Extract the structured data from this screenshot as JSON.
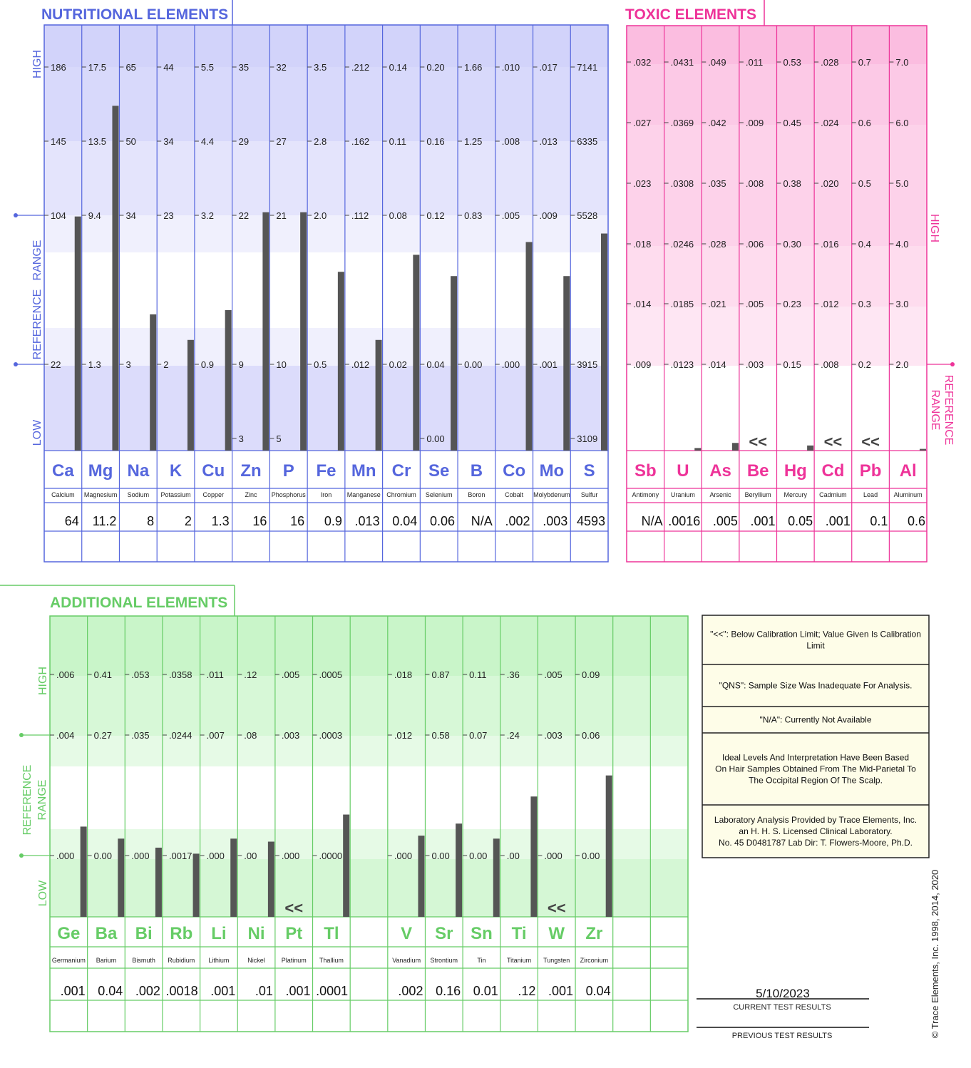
{
  "colors": {
    "nutritional": "#5566dd",
    "toxic": "#ee3399",
    "additional": "#66cc66",
    "bar": "#555555"
  },
  "panels": {
    "nutritional": {
      "title": "NUTRITIONAL  ELEMENTS",
      "high": "HIGH",
      "low": "LOW",
      "ref1": "REFERENCE",
      "ref2": "RANGE"
    },
    "toxic": {
      "title": "TOXIC  ELEMENTS",
      "high": "HIGH",
      "ref1": "REFERENCE",
      "ref2": "RANGE"
    },
    "additional": {
      "title": "ADDITIONAL  ELEMENTS",
      "high": "HIGH",
      "low": "LOW",
      "ref1": "REFERENCE",
      "ref2": "RANGE"
    }
  },
  "chart_data": [
    {
      "type": "bar",
      "title": "NUTRITIONAL  ELEMENTS",
      "elements": [
        {
          "symbol": "Ca",
          "name": "Calcium",
          "ticks": [
            "186",
            "145",
            "104",
            "22"
          ],
          "extra": [],
          "value": "64",
          "level": 0.55
        },
        {
          "symbol": "Mg",
          "name": "Magnesium",
          "ticks": [
            "17.5",
            "13.5",
            "9.4",
            "1.3"
          ],
          "extra": [],
          "value": "11.2",
          "level": 0.81
        },
        {
          "symbol": "Na",
          "name": "Sodium",
          "ticks": [
            "65",
            "50",
            "34",
            "3"
          ],
          "extra": [],
          "value": "8",
          "level": 0.32
        },
        {
          "symbol": "K",
          "name": "Potassium",
          "ticks": [
            "44",
            "34",
            "23",
            "2"
          ],
          "extra": [],
          "value": "2",
          "level": 0.26
        },
        {
          "symbol": "Cu",
          "name": "Copper",
          "ticks": [
            "5.5",
            "4.4",
            "3.2",
            "0.9"
          ],
          "extra": [],
          "value": "1.3",
          "level": 0.33
        },
        {
          "symbol": "Zn",
          "name": "Zinc",
          "ticks": [
            "35",
            "29",
            "22",
            "9"
          ],
          "extra": [
            "3"
          ],
          "value": "16",
          "level": 0.56
        },
        {
          "symbol": "P",
          "name": "Phosphorus",
          "ticks": [
            "32",
            "27",
            "21",
            "10"
          ],
          "extra": [
            "5"
          ],
          "value": "16",
          "level": 0.56
        },
        {
          "symbol": "Fe",
          "name": "Iron",
          "ticks": [
            "3.5",
            "2.8",
            "2.0",
            "0.5"
          ],
          "extra": [],
          "value": "0.9",
          "level": 0.42
        },
        {
          "symbol": "Mn",
          "name": "Manganese",
          "ticks": [
            ".212",
            ".162",
            ".112",
            ".012"
          ],
          "extra": [],
          "value": ".013",
          "level": 0.26
        },
        {
          "symbol": "Cr",
          "name": "Chromium",
          "ticks": [
            "0.14",
            "0.11",
            "0.08",
            "0.02"
          ],
          "extra": [],
          "value": "0.04",
          "level": 0.46
        },
        {
          "symbol": "Se",
          "name": "Selenium",
          "ticks": [
            "0.20",
            "0.16",
            "0.12",
            "0.04"
          ],
          "extra": [
            "0.00"
          ],
          "value": "0.06",
          "level": 0.41
        },
        {
          "symbol": "B",
          "name": "Boron",
          "ticks": [
            "1.66",
            "1.25",
            "0.83",
            "0.00"
          ],
          "extra": [],
          "value": "N/A",
          "level": 0
        },
        {
          "symbol": "Co",
          "name": "Cobalt",
          "ticks": [
            ".010",
            ".008",
            ".005",
            ".000"
          ],
          "extra": [],
          "value": ".002",
          "level": 0.49
        },
        {
          "symbol": "Mo",
          "name": "Molybdenum",
          "ticks": [
            ".017",
            ".013",
            ".009",
            ".001"
          ],
          "extra": [],
          "value": ".003",
          "level": 0.41
        },
        {
          "symbol": "S",
          "name": "Sulfur",
          "ticks": [
            "7141",
            "6335",
            "5528",
            "3915"
          ],
          "extra": [
            "3109"
          ],
          "value": "4593",
          "level": 0.51
        }
      ]
    },
    {
      "type": "bar",
      "title": "TOXIC  ELEMENTS",
      "elements": [
        {
          "symbol": "Sb",
          "name": "Antimony",
          "ticks": [
            ".032",
            ".027",
            ".023",
            ".018",
            ".014",
            ".009"
          ],
          "value": "N/A",
          "level": 0,
          "marker": ""
        },
        {
          "symbol": "U",
          "name": "Uranium",
          "ticks": [
            ".0431",
            ".0369",
            ".0308",
            ".0246",
            ".0185",
            ".0123"
          ],
          "value": ".0016",
          "level": 0.006,
          "marker": ""
        },
        {
          "symbol": "As",
          "name": "Arsenic",
          "ticks": [
            ".049",
            ".042",
            ".035",
            ".028",
            ".021",
            ".014"
          ],
          "value": ".005",
          "level": 0.018,
          "marker": ""
        },
        {
          "symbol": "Be",
          "name": "Beryllium",
          "ticks": [
            ".011",
            ".009",
            ".008",
            ".006",
            ".005",
            ".003"
          ],
          "value": ".001",
          "level": 0,
          "marker": "<<"
        },
        {
          "symbol": "Hg",
          "name": "Mercury",
          "ticks": [
            "0.53",
            "0.45",
            "0.38",
            "0.30",
            "0.23",
            "0.15"
          ],
          "value": "0.05",
          "level": 0.012,
          "marker": ""
        },
        {
          "symbol": "Cd",
          "name": "Cadmium",
          "ticks": [
            ".028",
            ".024",
            ".020",
            ".016",
            ".012",
            ".008"
          ],
          "value": ".001",
          "level": 0,
          "marker": "<<"
        },
        {
          "symbol": "Pb",
          "name": "Lead",
          "ticks": [
            "0.7",
            "0.6",
            "0.5",
            "0.4",
            "0.3",
            "0.2"
          ],
          "value": "0.1",
          "level": 0,
          "marker": "<<"
        },
        {
          "symbol": "Al",
          "name": "Aluminum",
          "ticks": [
            "7.0",
            "6.0",
            "5.0",
            "4.0",
            "3.0",
            "2.0"
          ],
          "value": "0.6",
          "level": 0.004,
          "marker": ""
        }
      ]
    },
    {
      "type": "bar",
      "title": "ADDITIONAL  ELEMENTS",
      "elements": [
        {
          "symbol": "Ge",
          "name": "Germanium",
          "ticks": [
            ".006",
            ".004",
            ".000"
          ],
          "value": ".001",
          "level": 0.3,
          "marker": ""
        },
        {
          "symbol": "Ba",
          "name": "Barium",
          "ticks": [
            "0.41",
            "0.27",
            "0.00"
          ],
          "value": "0.04",
          "level": 0.26,
          "marker": ""
        },
        {
          "symbol": "Bi",
          "name": "Bismuth",
          "ticks": [
            ".053",
            ".035",
            ".000"
          ],
          "value": ".002",
          "level": 0.23,
          "marker": ""
        },
        {
          "symbol": "Rb",
          "name": "Rubidium",
          "ticks": [
            ".0358",
            ".0244",
            ".0017"
          ],
          "value": ".0018",
          "level": 0.21,
          "marker": ""
        },
        {
          "symbol": "Li",
          "name": "Lithium",
          "ticks": [
            ".011",
            ".007",
            ".000"
          ],
          "value": ".001",
          "level": 0.26,
          "marker": ""
        },
        {
          "symbol": "Ni",
          "name": "Nickel",
          "ticks": [
            ".12",
            ".08",
            ".00"
          ],
          "value": ".01",
          "level": 0.25,
          "marker": ""
        },
        {
          "symbol": "Pt",
          "name": "Platinum",
          "ticks": [
            ".005",
            ".003",
            ".000"
          ],
          "value": ".001",
          "level": 0,
          "marker": "<<"
        },
        {
          "symbol": "Tl",
          "name": "Thallium",
          "ticks": [
            ".0005",
            ".0003",
            ".0000"
          ],
          "value": ".0001",
          "level": 0.34,
          "marker": ""
        },
        {
          "symbol": "",
          "name": "",
          "ticks": [],
          "value": "",
          "level": 0,
          "marker": ""
        },
        {
          "symbol": "V",
          "name": "Vanadium",
          "ticks": [
            ".018",
            ".012",
            ".000"
          ],
          "value": ".002",
          "level": 0.27,
          "marker": ""
        },
        {
          "symbol": "Sr",
          "name": "Strontium",
          "ticks": [
            "0.87",
            "0.58",
            "0.00"
          ],
          "value": "0.16",
          "level": 0.31,
          "marker": ""
        },
        {
          "symbol": "Sn",
          "name": "Tin",
          "ticks": [
            "0.11",
            "0.07",
            "0.00"
          ],
          "value": "0.01",
          "level": 0.26,
          "marker": ""
        },
        {
          "symbol": "Ti",
          "name": "Titanium",
          "ticks": [
            ".36",
            ".24",
            ".00"
          ],
          "value": ".12",
          "level": 0.4,
          "marker": ""
        },
        {
          "symbol": "W",
          "name": "Tungsten",
          "ticks": [
            ".005",
            ".003",
            ".000"
          ],
          "value": ".001",
          "level": 0,
          "marker": "<<"
        },
        {
          "symbol": "Zr",
          "name": "Zirconium",
          "ticks": [
            "0.09",
            "0.06",
            "0.00"
          ],
          "value": "0.04",
          "level": 0.47,
          "marker": ""
        },
        {
          "symbol": "",
          "name": "",
          "ticks": [],
          "value": "",
          "level": 0,
          "marker": ""
        },
        {
          "symbol": "",
          "name": "",
          "ticks": [],
          "value": "",
          "level": 0,
          "marker": ""
        }
      ]
    }
  ],
  "legend": {
    "items": [
      "\"<<\": Below Calibration Limit; Value Given Is Calibration Limit",
      "\"QNS\": Sample Size Was Inadequate For Analysis.",
      "\"N/A\": Currently Not Available",
      "Ideal Levels And Interpretation Have Been Based On Hair Samples Obtained From The Mid-Parietal To The Occipital Region Of The Scalp.",
      "Laboratory Analysis Provided by Trace Elements, Inc. an H. H. S. Licensed Clinical Laboratory. No. 45 D0481787  Lab Dir: T. Flowers-Moore, Ph.D."
    ]
  },
  "results": {
    "date": "5/10/2023",
    "current_label": "CURRENT  TEST  RESULTS",
    "previous_label": "PREVIOUS  TEST  RESULTS"
  },
  "copyright": "© Trace Elements, Inc. 1998, 2014, 2020"
}
